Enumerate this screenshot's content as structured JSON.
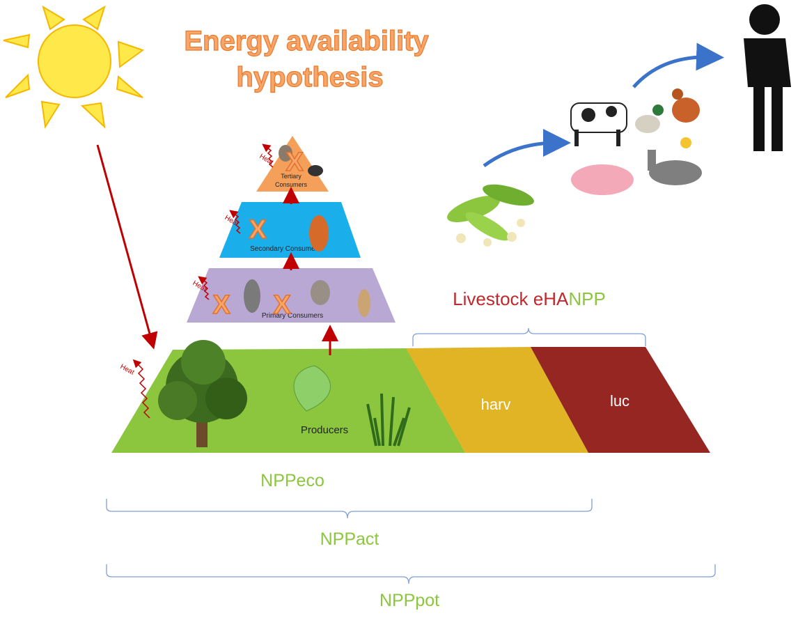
{
  "title": [
    "Energy availability",
    "hypothesis"
  ],
  "heat": "Heat",
  "exclusion_mark": "X",
  "pyramid": {
    "tertiary": [
      "Tertiary",
      "Consumers"
    ],
    "secondary": "Secondary Consumers",
    "primary": "Primary Consumers",
    "producers": "Producers"
  },
  "segments": {
    "harv": "harv",
    "luc": "luc"
  },
  "livestock_label": [
    "Livestock eHA",
    "NPP"
  ],
  "braces": {
    "eco": "NPPeco",
    "act": "NPPact",
    "pot": "NPPpot"
  }
}
